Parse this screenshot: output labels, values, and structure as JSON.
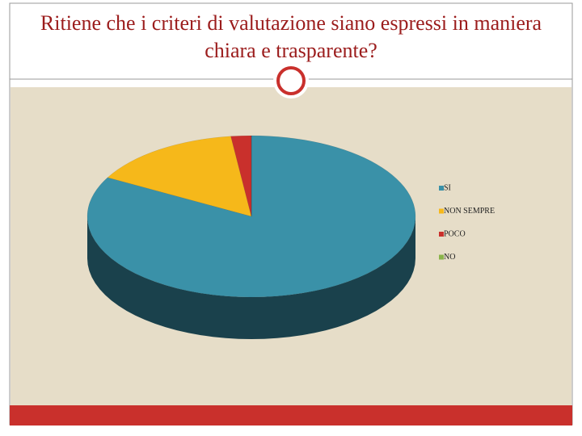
{
  "chart_data": {
    "type": "pie",
    "title": "Ritiene che i criteri di valutazione siano espressi in maniera chiara e trasparente?",
    "categories": [
      "SI",
      "NON SEMPRE",
      "POCO",
      "NO"
    ],
    "values": [
      83,
      15,
      2,
      0
    ],
    "colors": [
      "#3a91a8",
      "#f6b81a",
      "#c9302c",
      "#8ab34a"
    ],
    "legend": "right"
  }
}
